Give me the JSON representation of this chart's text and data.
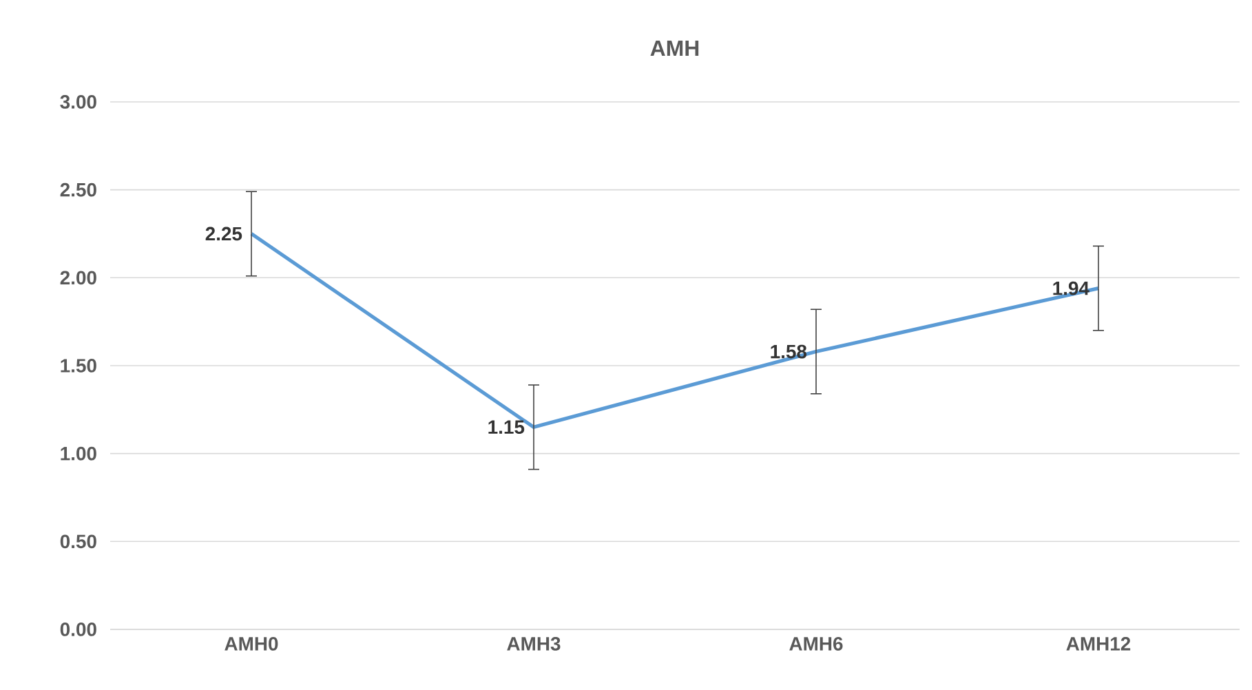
{
  "chart_data": {
    "type": "line",
    "title": "AMH",
    "categories": [
      "AMH0",
      "AMH3",
      "AMH6",
      "AMH12"
    ],
    "series": [
      {
        "color": "#5b9bd5",
        "values": [
          2.25,
          1.15,
          1.58,
          1.94
        ],
        "errors": [
          0.24,
          0.24,
          0.24,
          0.24
        ]
      }
    ],
    "ylim": [
      0,
      3
    ],
    "yticks": [
      {
        "value": 0,
        "label": "0.00"
      },
      {
        "value": 0.5,
        "label": "0.50"
      },
      {
        "value": 1,
        "label": "1.00"
      },
      {
        "value": 1.5,
        "label": "1.50"
      },
      {
        "value": 2,
        "label": "2.00"
      },
      {
        "value": 2.5,
        "label": "2.50"
      },
      {
        "value": 3,
        "label": "3.00"
      }
    ],
    "grid": "y",
    "data_labels": true,
    "marker": "none",
    "line_style": "solid"
  }
}
